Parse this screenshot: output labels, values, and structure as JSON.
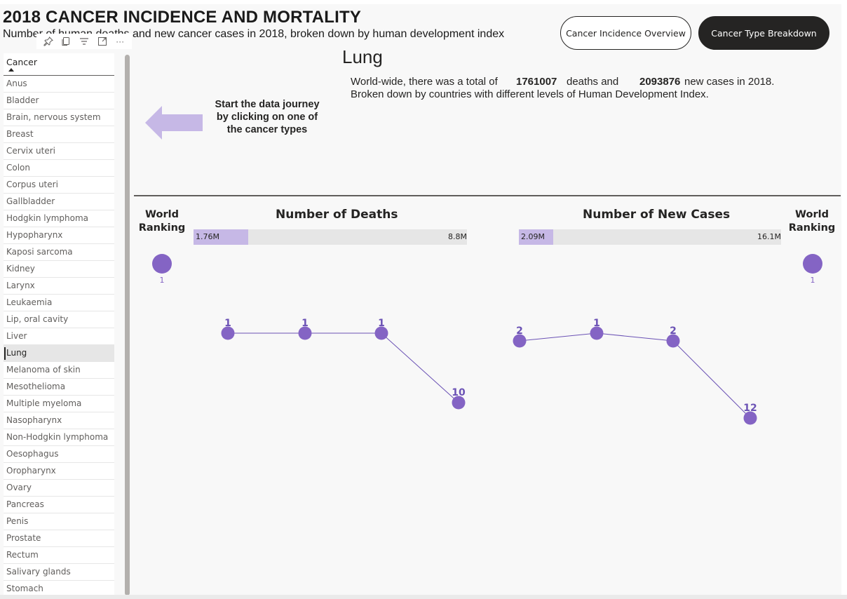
{
  "header": {
    "title": "2018 CANCER INCIDENCE AND MORTALITY",
    "subtitle": "Number of human deaths and new cancer cases in 2018, broken down by human development index"
  },
  "nav": {
    "overview_label": "Cancer Incidence Overview",
    "breakdown_label": "Cancer Type Breakdown"
  },
  "toolbar": {
    "icons": [
      "pin-icon",
      "copy-icon",
      "filter-icon",
      "focus-mode-icon",
      "more-options-icon"
    ],
    "more_label": "···"
  },
  "slicer": {
    "header": "Cancer",
    "selected": "Lung",
    "items": [
      "Anus",
      "Bladder",
      "Brain, nervous system",
      "Breast",
      "Cervix uteri",
      "Colon",
      "Corpus uteri",
      "Gallbladder",
      "Hodgkin lymphoma",
      "Hypopharynx",
      "Kaposi sarcoma",
      "Kidney",
      "Larynx",
      "Leukaemia",
      "Lip, oral cavity",
      "Liver",
      "Lung",
      "Melanoma of skin",
      "Mesothelioma",
      "Multiple myeloma",
      "Nasopharynx",
      "Non-Hodgkin lymphoma",
      "Oesophagus",
      "Oropharynx",
      "Ovary",
      "Pancreas",
      "Penis",
      "Prostate",
      "Rectum",
      "Salivary glands",
      "Stomach"
    ]
  },
  "callout": {
    "text": "Start the data journey by clicking on one of the cancer types"
  },
  "detail": {
    "cancer_name": "Lung",
    "summary_prefix": "World-wide, there was a total of",
    "deaths_total": "1761007",
    "summary_mid": "deaths and",
    "cases_total": "2093876",
    "summary_suffix": "new cases in 2018.",
    "summary_line2": "Broken down by countries with different levels of Human Development Index."
  },
  "ranking": {
    "label": "World Ranking",
    "deaths_rank": "1",
    "cases_rank": "1"
  },
  "colors": {
    "accent": "#8464c4",
    "bar_fill": "#c6b8e6",
    "line": "#6b52b5",
    "dark_button": "#252423"
  },
  "chart_data": [
    {
      "type": "bar",
      "title": "Number of Deaths",
      "value_label": "1.76M",
      "max_label": "8.8M",
      "value": 1.76,
      "max": 8.8
    },
    {
      "type": "line",
      "title": "",
      "categories": [
        "",
        "",
        "",
        ""
      ],
      "values": [
        1,
        1,
        1,
        10
      ],
      "labels": [
        "1",
        "1",
        "1",
        "10"
      ],
      "ylim": [
        12,
        1
      ]
    },
    {
      "type": "bar",
      "title": "Number of New Cases",
      "value_label": "2.09M",
      "max_label": "16.1M",
      "value": 2.09,
      "max": 16.1
    },
    {
      "type": "line",
      "title": "",
      "categories": [
        "",
        "",
        "",
        ""
      ],
      "values": [
        2,
        1,
        2,
        12
      ],
      "labels": [
        "2",
        "1",
        "2",
        "12"
      ],
      "ylim": [
        12,
        1
      ]
    }
  ]
}
